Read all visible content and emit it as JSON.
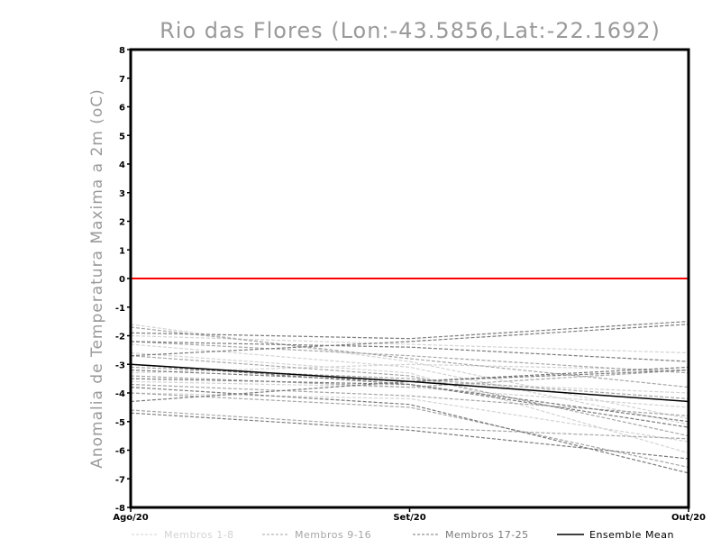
{
  "chart_data": {
    "type": "line",
    "title": "Rio das Flores (Lon:-43.5856,Lat:-22.1692)",
    "ylabel": "Anomalia de Temperatura Maxima a 2m (oC)",
    "xlabel": "",
    "categories": [
      "Ago/20",
      "Set/20",
      "Out/20"
    ],
    "ylim": [
      -8,
      8
    ],
    "yticks": [
      "-8",
      "-7",
      "-6",
      "-5",
      "-4",
      "-3",
      "-2",
      "-1",
      "0",
      "1",
      "2",
      "3",
      "4",
      "5",
      "6",
      "7",
      "8"
    ],
    "grid": false,
    "legend_position": "bottom",
    "reference_line": {
      "value": 0,
      "color": "#ff0000"
    },
    "groups": [
      {
        "name": "Membros 1-8",
        "color": "#d3d3d3",
        "dashed": true
      },
      {
        "name": "Membros 9-16",
        "color": "#a6a6a6",
        "dashed": true
      },
      {
        "name": "Membros 17-25",
        "color": "#7a7a7a",
        "dashed": true
      },
      {
        "name": "Ensemble Mean",
        "color": "#000000",
        "dashed": false
      }
    ],
    "series": [
      {
        "group": 0,
        "values": [
          -1.6,
          -2.9,
          -4.9
        ]
      },
      {
        "group": 0,
        "values": [
          -2.0,
          -2.3,
          -2.6
        ]
      },
      {
        "group": 0,
        "values": [
          -2.3,
          -3.1,
          -5.1
        ]
      },
      {
        "group": 0,
        "values": [
          -2.6,
          -3.3,
          -6.1
        ]
      },
      {
        "group": 0,
        "values": [
          -3.0,
          -3.6,
          -4.0
        ]
      },
      {
        "group": 0,
        "values": [
          -3.3,
          -3.0,
          -3.2
        ]
      },
      {
        "group": 0,
        "values": [
          -3.6,
          -3.8,
          -4.5
        ]
      },
      {
        "group": 0,
        "values": [
          -4.0,
          -4.2,
          -5.7
        ]
      },
      {
        "group": 1,
        "values": [
          -1.7,
          -2.8,
          -3.8
        ]
      },
      {
        "group": 1,
        "values": [
          -2.2,
          -2.7,
          -3.3
        ]
      },
      {
        "group": 1,
        "values": [
          -2.7,
          -3.4,
          -5.5
        ]
      },
      {
        "group": 1,
        "values": [
          -3.1,
          -3.5,
          -4.2
        ]
      },
      {
        "group": 1,
        "values": [
          -3.4,
          -3.8,
          -3.2
        ]
      },
      {
        "group": 1,
        "values": [
          -3.7,
          -4.1,
          -4.8
        ]
      },
      {
        "group": 1,
        "values": [
          -4.0,
          -4.5,
          -6.6
        ]
      },
      {
        "group": 1,
        "values": [
          -4.6,
          -5.2,
          -5.6
        ]
      },
      {
        "group": 2,
        "values": [
          -1.9,
          -2.1,
          -1.5
        ]
      },
      {
        "group": 2,
        "values": [
          -2.7,
          -2.2,
          -1.6
        ]
      },
      {
        "group": 2,
        "values": [
          -2.2,
          -2.4,
          -2.9
        ]
      },
      {
        "group": 2,
        "values": [
          -3.2,
          -3.6,
          -3.2
        ]
      },
      {
        "group": 2,
        "values": [
          -3.5,
          -3.7,
          -5.0
        ]
      },
      {
        "group": 2,
        "values": [
          -3.8,
          -4.4,
          -6.8
        ]
      },
      {
        "group": 2,
        "values": [
          -4.3,
          -3.6,
          -3.1
        ]
      },
      {
        "group": 2,
        "values": [
          -4.7,
          -5.3,
          -6.3
        ]
      },
      {
        "group": 2,
        "values": [
          -3.0,
          -3.7,
          -5.2
        ]
      },
      {
        "group": 3,
        "values": [
          -3.0,
          -3.6,
          -4.3
        ]
      }
    ]
  }
}
